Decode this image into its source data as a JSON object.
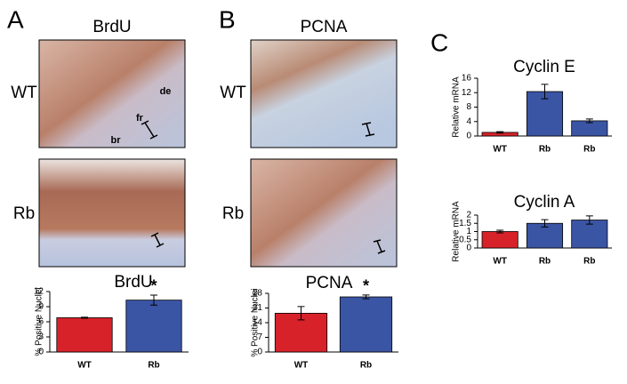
{
  "panels": [
    {
      "label": "A",
      "heading": "BrdU",
      "rows": [
        "WT",
        "Rb"
      ],
      "tissue": [
        "de",
        "fr",
        "br"
      ]
    },
    {
      "label": "B",
      "heading": "PCNA",
      "rows": [
        "WT",
        "Rb"
      ]
    },
    {
      "label": "C"
    }
  ],
  "chart_data": [
    {
      "type": "bar",
      "title": "BrdU",
      "y_label": "% Positive Nuclei",
      "categories": [
        "WT",
        "Rb"
      ],
      "values": [
        6.8,
        10.3
      ],
      "errors": [
        0.1,
        1.0
      ],
      "colors": [
        "#d7222a",
        "#3b55a5"
      ],
      "ylim": [
        0,
        12
      ],
      "yticks": [
        0,
        3,
        6,
        9,
        12
      ],
      "annotations": [
        {
          "text": "*",
          "x": "Rb"
        }
      ]
    },
    {
      "type": "bar",
      "title": "PCNA",
      "y_label": "% Positive Nuclei",
      "categories": [
        "WT",
        "Rb"
      ],
      "values": [
        18.5,
        26.3
      ],
      "errors": [
        3.2,
        0.9
      ],
      "colors": [
        "#d7222a",
        "#3b55a5"
      ],
      "ylim": [
        0,
        28
      ],
      "yticks": [
        0,
        7,
        14,
        21,
        28
      ],
      "annotations": [
        {
          "text": "*",
          "x": "Rb"
        }
      ]
    },
    {
      "type": "bar",
      "title": "Cyclin E",
      "y_label": "Relative mRNA",
      "categories": [
        "WT",
        "Rb",
        "Rb"
      ],
      "values": [
        1.0,
        12.3,
        4.2
      ],
      "errors": [
        0.2,
        2.0,
        0.5
      ],
      "colors": [
        "#d7222a",
        "#3b55a5",
        "#3b55a5"
      ],
      "ylim": [
        0,
        16
      ],
      "yticks": [
        0,
        4,
        8,
        12,
        16
      ]
    },
    {
      "type": "bar",
      "title": "Cyclin A",
      "y_label": "Relative mRNA",
      "categories": [
        "WT",
        "Rb",
        "Rb"
      ],
      "values": [
        1.0,
        1.5,
        1.7
      ],
      "errors": [
        0.08,
        0.22,
        0.25
      ],
      "colors": [
        "#d7222a",
        "#3b55a5",
        "#3b55a5"
      ],
      "ylim": [
        0,
        2
      ],
      "yticks": [
        0,
        0.5,
        1,
        1.5,
        2
      ]
    }
  ]
}
